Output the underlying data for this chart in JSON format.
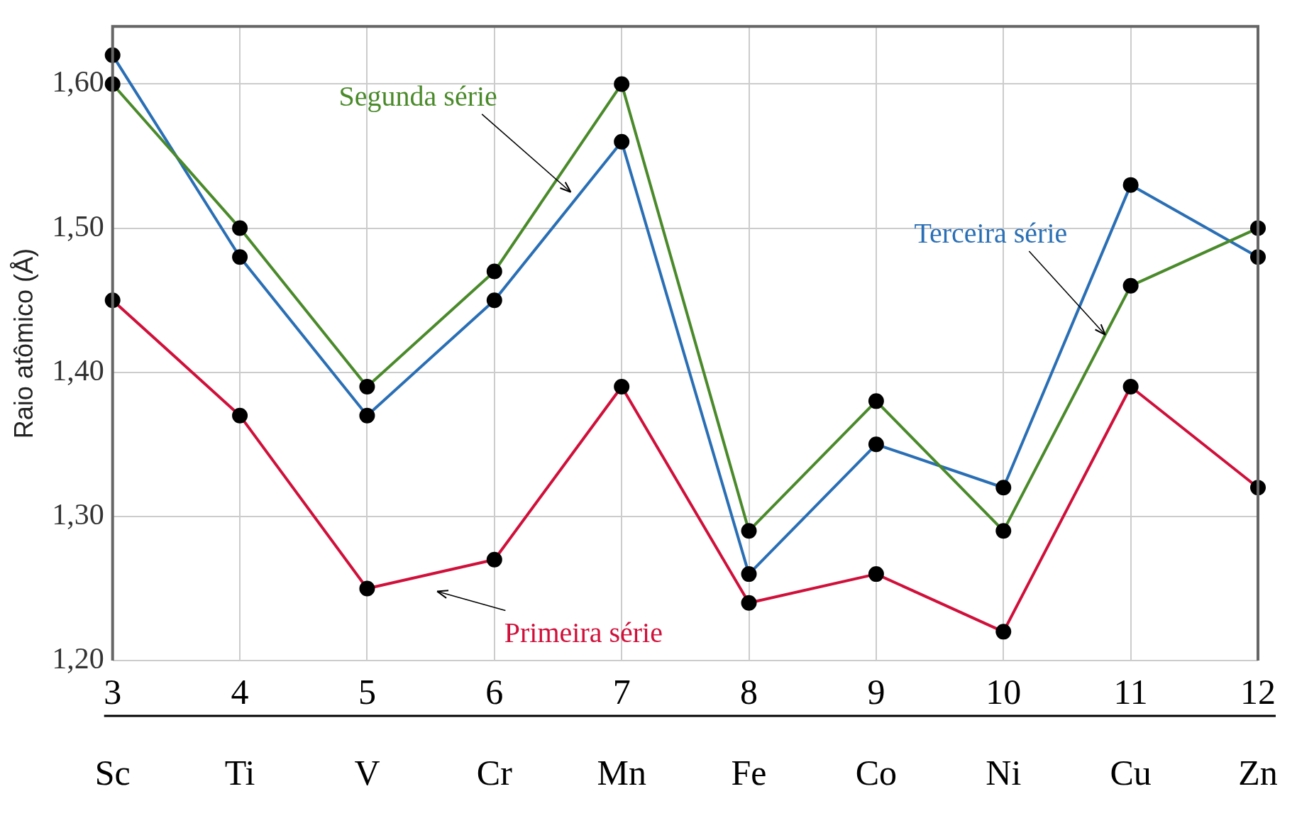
{
  "chart_data": {
    "type": "line",
    "ylabel": "Raio atômico (Å)",
    "categories": [
      "3",
      "4",
      "5",
      "6",
      "7",
      "8",
      "9",
      "10",
      "11",
      "12"
    ],
    "series": [
      {
        "name": "Primeira série",
        "color": "#d0103a",
        "values": [
          1.45,
          1.37,
          1.25,
          1.27,
          1.39,
          1.24,
          1.26,
          1.22,
          1.39,
          1.32
        ]
      },
      {
        "name": "Segunda série",
        "color": "#4a8a2a",
        "values": [
          1.6,
          1.5,
          1.39,
          1.47,
          1.6,
          1.29,
          1.38,
          1.29,
          1.46,
          1.5
        ]
      },
      {
        "name": "Terceira série",
        "color": "#2a6fb5",
        "values": [
          1.62,
          1.48,
          1.37,
          1.45,
          1.56,
          1.26,
          1.35,
          1.32,
          1.53,
          1.48
        ]
      }
    ],
    "annotations": [
      "Sc",
      "Ti",
      "V",
      "Cr",
      "Mn",
      "Fe",
      "Co",
      "Ni",
      "Cu",
      "Zn"
    ],
    "ylim": [
      1.2,
      1.64
    ],
    "yticks": [
      {
        "value": 1.2,
        "label": "1,20"
      },
      {
        "value": 1.3,
        "label": "1,30"
      },
      {
        "value": 1.4,
        "label": "1,40"
      },
      {
        "value": 1.5,
        "label": "1,50"
      },
      {
        "value": 1.6,
        "label": "1,60"
      }
    ],
    "grid": true,
    "legend": false,
    "marker": "circle",
    "line_style": "solid"
  }
}
